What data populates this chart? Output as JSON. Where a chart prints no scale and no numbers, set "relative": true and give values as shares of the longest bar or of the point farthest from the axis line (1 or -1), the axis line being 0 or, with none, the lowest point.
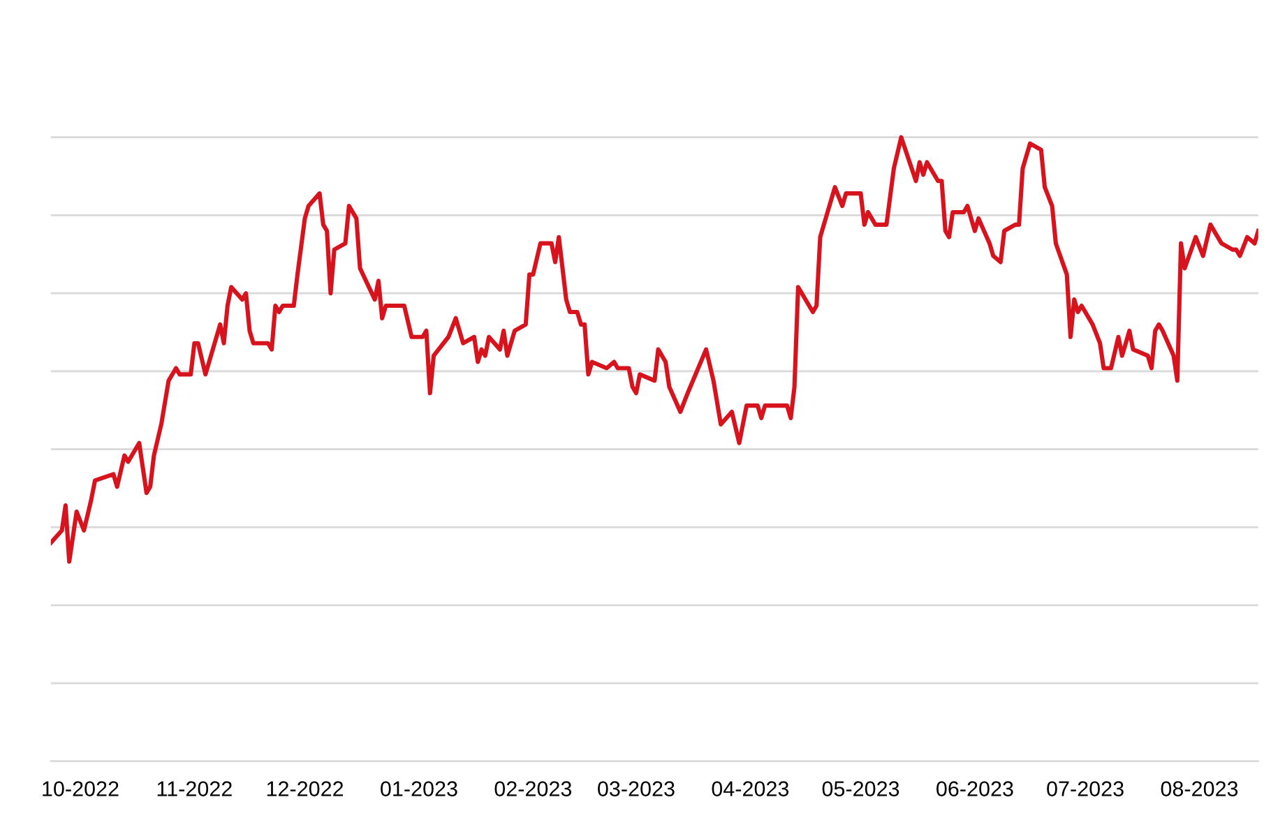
{
  "chart_data": {
    "type": "line",
    "relative": true,
    "grid": "y",
    "tick_labels": "x",
    "marker": "none",
    "line_style": "solid",
    "xlim": [
      "2022-09-23",
      "2023-08-17"
    ],
    "xticks": [
      {
        "value": "2022-10-01",
        "label": "10-2022"
      },
      {
        "value": "2022-11-01",
        "label": "11-2022"
      },
      {
        "value": "2022-12-01",
        "label": "12-2022"
      },
      {
        "value": "2023-01-01",
        "label": "01-2023"
      },
      {
        "value": "2023-02-01",
        "label": "02-2023"
      },
      {
        "value": "2023-03-01",
        "label": "03-2023"
      },
      {
        "value": "2023-04-01",
        "label": "04-2023"
      },
      {
        "value": "2023-05-01",
        "label": "05-2023"
      },
      {
        "value": "2023-06-01",
        "label": "06-2023"
      },
      {
        "value": "2023-07-01",
        "label": "07-2023"
      },
      {
        "value": "2023-08-01",
        "label": "08-2023"
      }
    ],
    "series": [
      {
        "color": "#d7141e",
        "x": [
          "2022-09-23",
          "2022-09-26",
          "2022-09-27",
          "2022-09-28",
          "2022-09-30",
          "2022-10-02",
          "2022-10-04",
          "2022-10-05",
          "2022-10-10",
          "2022-10-11",
          "2022-10-13",
          "2022-10-14",
          "2022-10-17",
          "2022-10-19",
          "2022-10-20",
          "2022-10-21",
          "2022-10-23",
          "2022-10-25",
          "2022-10-27",
          "2022-10-28",
          "2022-10-31",
          "2022-11-01",
          "2022-11-02",
          "2022-11-04",
          "2022-11-06",
          "2022-11-08",
          "2022-11-09",
          "2022-11-10",
          "2022-11-11",
          "2022-11-14",
          "2022-11-15",
          "2022-11-16",
          "2022-11-17",
          "2022-11-21",
          "2022-11-22",
          "2022-11-23",
          "2022-11-24",
          "2022-11-25",
          "2022-11-28",
          "2022-11-29",
          "2022-12-01",
          "2022-12-02",
          "2022-12-05",
          "2022-12-06",
          "2022-12-07",
          "2022-12-08",
          "2022-12-09",
          "2022-12-12",
          "2022-12-13",
          "2022-12-14",
          "2022-12-15",
          "2022-12-16",
          "2022-12-20",
          "2022-12-21",
          "2022-12-22",
          "2022-12-23",
          "2022-12-28",
          "2022-12-30",
          "2023-01-02",
          "2023-01-03",
          "2023-01-04",
          "2023-01-05",
          "2023-01-09",
          "2023-01-11",
          "2023-01-13",
          "2023-01-16",
          "2023-01-17",
          "2023-01-18",
          "2023-01-19",
          "2023-01-20",
          "2023-01-23",
          "2023-01-24",
          "2023-01-25",
          "2023-01-27",
          "2023-01-30",
          "2023-01-31",
          "2023-02-01",
          "2023-02-03",
          "2023-02-04",
          "2023-02-06",
          "2023-02-07",
          "2023-02-08",
          "2023-02-10",
          "2023-02-11",
          "2023-02-13",
          "2023-02-14",
          "2023-02-15",
          "2023-02-16",
          "2023-02-17",
          "2023-02-21",
          "2023-02-23",
          "2023-02-24",
          "2023-02-27",
          "2023-02-28",
          "2023-03-01",
          "2023-03-02",
          "2023-03-06",
          "2023-03-07",
          "2023-03-09",
          "2023-03-10",
          "2023-03-13",
          "2023-03-15",
          "2023-03-20",
          "2023-03-22",
          "2023-03-24",
          "2023-03-27",
          "2023-03-29",
          "2023-03-31",
          "2023-04-03",
          "2023-04-04",
          "2023-04-05",
          "2023-04-11",
          "2023-04-12",
          "2023-04-13",
          "2023-04-14",
          "2023-04-18",
          "2023-04-19",
          "2023-04-20",
          "2023-04-24",
          "2023-04-26",
          "2023-04-27",
          "2023-05-01",
          "2023-05-02",
          "2023-05-03",
          "2023-05-05",
          "2023-05-08",
          "2023-05-10",
          "2023-05-12",
          "2023-05-16",
          "2023-05-17",
          "2023-05-18",
          "2023-05-19",
          "2023-05-22",
          "2023-05-23",
          "2023-05-24",
          "2023-05-25",
          "2023-05-26",
          "2023-05-29",
          "2023-05-30",
          "2023-06-01",
          "2023-06-02",
          "2023-06-05",
          "2023-06-06",
          "2023-06-08",
          "2023-06-09",
          "2023-06-12",
          "2023-06-13",
          "2023-06-14",
          "2023-06-16",
          "2023-06-19",
          "2023-06-20",
          "2023-06-22",
          "2023-06-23",
          "2023-06-26",
          "2023-06-27",
          "2023-06-28",
          "2023-06-29",
          "2023-06-30",
          "2023-07-03",
          "2023-07-05",
          "2023-07-06",
          "2023-07-08",
          "2023-07-10",
          "2023-07-11",
          "2023-07-13",
          "2023-07-14",
          "2023-07-18",
          "2023-07-19",
          "2023-07-20",
          "2023-07-21",
          "2023-07-22",
          "2023-07-25",
          "2023-07-26",
          "2023-07-27",
          "2023-07-28",
          "2023-07-31",
          "2023-08-02",
          "2023-08-04",
          "2023-08-07",
          "2023-08-10",
          "2023-08-11",
          "2023-08-12",
          "2023-08-14",
          "2023-08-16",
          "2023-08-17"
        ],
        "values": [
          0.35,
          0.37,
          0.41,
          0.32,
          0.4,
          0.37,
          0.42,
          0.45,
          0.46,
          0.44,
          0.49,
          0.48,
          0.51,
          0.43,
          0.44,
          0.49,
          0.54,
          0.61,
          0.63,
          0.62,
          0.62,
          0.67,
          0.67,
          0.62,
          0.66,
          0.7,
          0.67,
          0.73,
          0.76,
          0.74,
          0.75,
          0.69,
          0.67,
          0.67,
          0.66,
          0.73,
          0.72,
          0.73,
          0.73,
          0.78,
          0.87,
          0.89,
          0.91,
          0.86,
          0.85,
          0.75,
          0.82,
          0.83,
          0.89,
          0.88,
          0.87,
          0.79,
          0.74,
          0.77,
          0.71,
          0.73,
          0.73,
          0.68,
          0.68,
          0.69,
          0.59,
          0.65,
          0.68,
          0.71,
          0.67,
          0.68,
          0.64,
          0.66,
          0.65,
          0.68,
          0.66,
          0.69,
          0.65,
          0.69,
          0.7,
          0.78,
          0.78,
          0.83,
          0.83,
          0.83,
          0.8,
          0.84,
          0.74,
          0.72,
          0.72,
          0.7,
          0.7,
          0.62,
          0.64,
          0.63,
          0.64,
          0.63,
          0.63,
          0.6,
          0.59,
          0.62,
          0.61,
          0.66,
          0.64,
          0.6,
          0.56,
          0.59,
          0.66,
          0.61,
          0.54,
          0.56,
          0.51,
          0.57,
          0.57,
          0.55,
          0.57,
          0.57,
          0.55,
          0.6,
          0.76,
          0.72,
          0.73,
          0.84,
          0.92,
          0.89,
          0.91,
          0.91,
          0.86,
          0.88,
          0.86,
          0.86,
          0.95,
          1.0,
          0.93,
          0.96,
          0.94,
          0.96,
          0.93,
          0.93,
          0.85,
          0.84,
          0.88,
          0.88,
          0.89,
          0.85,
          0.87,
          0.83,
          0.81,
          0.8,
          0.85,
          0.86,
          0.86,
          0.95,
          0.99,
          0.98,
          0.92,
          0.89,
          0.83,
          0.78,
          0.68,
          0.74,
          0.72,
          0.73,
          0.7,
          0.67,
          0.63,
          0.63,
          0.68,
          0.65,
          0.69,
          0.66,
          0.65,
          0.63,
          0.69,
          0.7,
          0.69,
          0.65,
          0.61,
          0.83,
          0.79,
          0.84,
          0.81,
          0.86,
          0.83,
          0.82,
          0.82,
          0.81,
          0.84,
          0.83,
          0.85
        ]
      }
    ]
  }
}
